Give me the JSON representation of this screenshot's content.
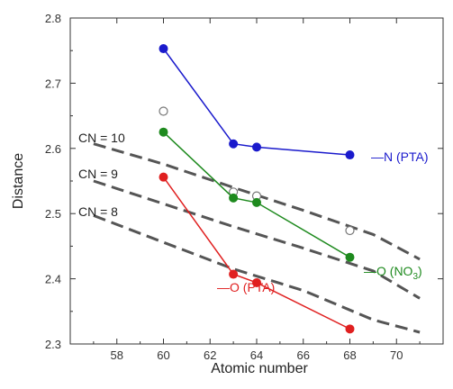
{
  "chart_data": {
    "type": "line",
    "xlabel": "Atomic number",
    "ylabel": "Distance",
    "xlim": [
      56,
      72
    ],
    "ylim": [
      2.3,
      2.8
    ],
    "x_ticks": [
      "58",
      "60",
      "62",
      "64",
      "66",
      "68",
      "70"
    ],
    "y_ticks": [
      "2.3",
      "2.4",
      "2.5",
      "2.6",
      "2.7",
      "2.8"
    ],
    "grid": false,
    "series": [
      {
        "label": "—N (PTA)",
        "color": "#1a1acc",
        "points": [
          [
            60,
            2.753
          ],
          [
            63,
            2.607
          ],
          [
            64,
            2.602
          ],
          [
            68,
            2.59
          ]
        ]
      },
      {
        "label": "—O (NO",
        "label_sub": "3",
        "label_end": ")",
        "color": "#1e8a1e",
        "points": [
          [
            60,
            2.625
          ],
          [
            63,
            2.524
          ],
          [
            64,
            2.517
          ],
          [
            68,
            2.433
          ]
        ]
      },
      {
        "label": "—O (PTA)",
        "color": "#e02020",
        "points": [
          [
            60,
            2.556
          ],
          [
            63,
            2.407
          ],
          [
            64,
            2.394
          ],
          [
            68,
            2.323
          ]
        ]
      }
    ],
    "open_points": {
      "color": "#777777",
      "points": [
        [
          60,
          2.657
        ],
        [
          63,
          2.533
        ],
        [
          64,
          2.527
        ],
        [
          68,
          2.474
        ]
      ]
    },
    "dashed_curves": [
      {
        "label": "CN = 10",
        "color": "#555555",
        "points": [
          [
            57,
            2.607
          ],
          [
            60,
            2.576
          ],
          [
            63,
            2.54
          ],
          [
            66,
            2.505
          ],
          [
            69,
            2.468
          ],
          [
            71,
            2.43
          ]
        ]
      },
      {
        "label": "CN = 9",
        "color": "#555555",
        "points": [
          [
            57,
            2.55
          ],
          [
            60,
            2.515
          ],
          [
            63,
            2.48
          ],
          [
            66,
            2.447
          ],
          [
            69,
            2.412
          ],
          [
            71,
            2.37
          ]
        ]
      },
      {
        "label": "CN = 8",
        "color": "#555555",
        "points": [
          [
            57,
            2.497
          ],
          [
            60,
            2.456
          ],
          [
            63,
            2.415
          ],
          [
            66,
            2.382
          ],
          [
            69,
            2.337
          ],
          [
            71,
            2.318
          ]
        ]
      }
    ]
  }
}
